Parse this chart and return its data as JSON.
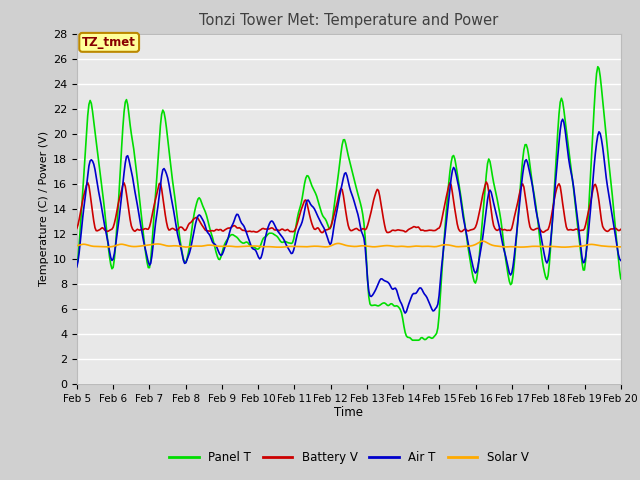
{
  "title": "Tonzi Tower Met: Temperature and Power",
  "xlabel": "Time",
  "ylabel": "Temperature (C) / Power (V)",
  "xlim": [
    0,
    15
  ],
  "ylim": [
    0,
    28
  ],
  "yticks": [
    0,
    2,
    4,
    6,
    8,
    10,
    12,
    14,
    16,
    18,
    20,
    22,
    24,
    26,
    28
  ],
  "xtick_labels": [
    "Feb 5",
    "Feb 6",
    "Feb 7",
    "Feb 8",
    "Feb 9",
    "Feb 10",
    "Feb 11",
    "Feb 12",
    "Feb 13",
    "Feb 14",
    "Feb 15",
    "Feb 16",
    "Feb 17",
    "Feb 18",
    "Feb 19",
    "Feb 20"
  ],
  "legend_labels": [
    "Panel T",
    "Battery V",
    "Air T",
    "Solar V"
  ],
  "line_colors": [
    "#00dd00",
    "#cc0000",
    "#0000cc",
    "#ffaa00"
  ],
  "annotation_text": "TZ_tmet",
  "annotation_color": "#880000",
  "annotation_bg": "#ffff99",
  "annotation_edge": "#bb8800",
  "fig_bg": "#d0d0d0",
  "plot_bg": "#e8e8e8",
  "grid_color": "#ffffff",
  "title_color": "#404040",
  "n_points": 450
}
